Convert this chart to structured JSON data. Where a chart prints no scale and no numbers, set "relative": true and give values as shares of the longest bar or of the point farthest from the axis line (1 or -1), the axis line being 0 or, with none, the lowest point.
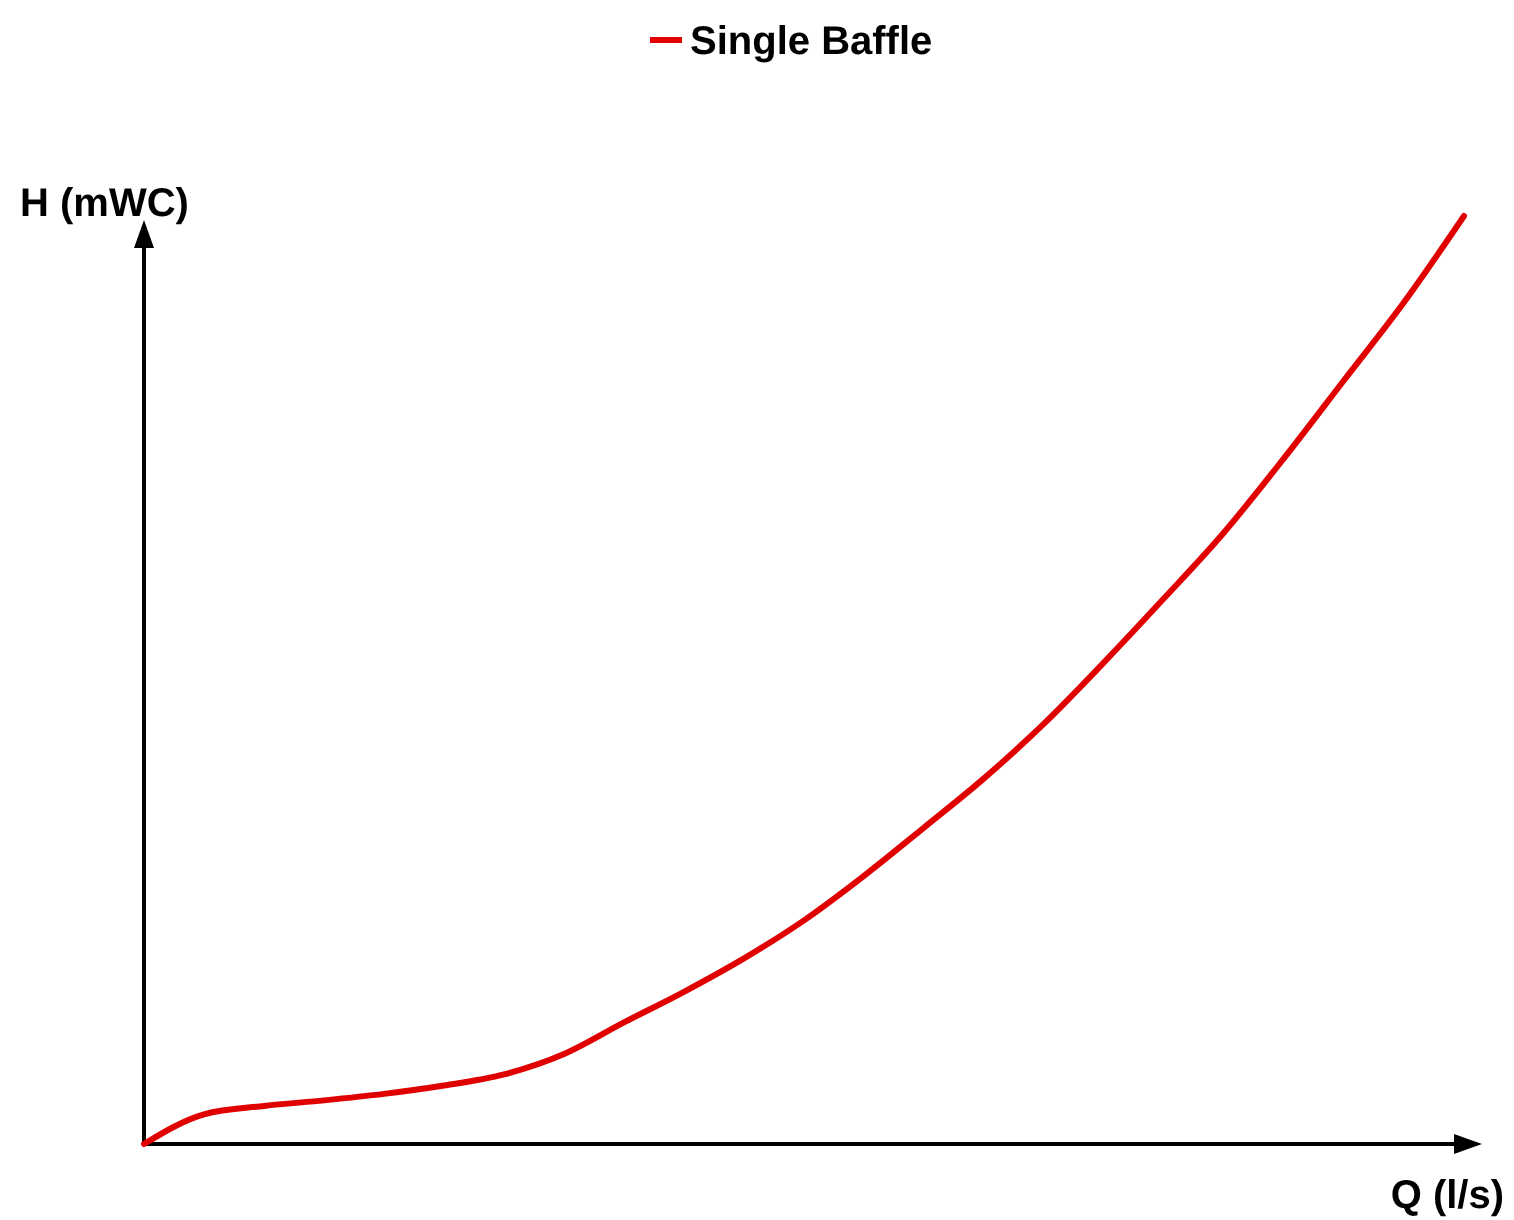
{
  "chart_data": {
    "type": "line",
    "relative": true,
    "xlabel": "Q (l/s)",
    "ylabel": "H (mWC)",
    "legend": "top",
    "marker": "none",
    "line_style": "solid",
    "categories": [
      null,
      null,
      null,
      null,
      null,
      null,
      null,
      null,
      null,
      null,
      null,
      null,
      null,
      null,
      null,
      null,
      null,
      null,
      null,
      null,
      null,
      null,
      null
    ],
    "series": [
      {
        "name": "Single Baffle",
        "color": "#e00000",
        "values": [
          0,
          0.032,
          0.041,
          0.047,
          0.054,
          0.063,
          0.075,
          0.097,
          0.131,
          0.164,
          0.2,
          0.241,
          0.289,
          0.341,
          0.394,
          0.453,
          0.519,
          0.588,
          0.659,
          0.739,
          0.823,
          0.907,
          1
        ]
      }
    ]
  }
}
